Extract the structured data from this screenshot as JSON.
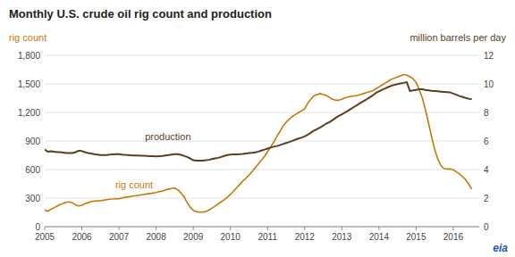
{
  "chart_data": {
    "type": "line",
    "title": "Monthly U.S. crude oil rig count and production",
    "y_label": "rig count",
    "y2_label": "million barrels per day",
    "xlim": [
      2005.0,
      2016.7
    ],
    "xticks": [
      2005,
      2006,
      2007,
      2008,
      2009,
      2010,
      2011,
      2012,
      2013,
      2014,
      2015,
      2016
    ],
    "ylim": [
      0,
      1800
    ],
    "yticks": [
      0,
      300,
      600,
      900,
      {
        "value": 1200,
        "label": "1,200"
      },
      {
        "value": 1500,
        "label": "1,500"
      },
      {
        "value": 1800,
        "label": "1,800"
      }
    ],
    "y2lim": [
      0,
      12
    ],
    "y2ticks": [
      0,
      2,
      4,
      6,
      8,
      10,
      12
    ],
    "grid": true,
    "x": [
      2005.0,
      2005.083,
      2005.167,
      2005.25,
      2005.333,
      2005.417,
      2005.5,
      2005.583,
      2005.667,
      2005.75,
      2005.833,
      2005.917,
      2006.0,
      2006.083,
      2006.167,
      2006.25,
      2006.333,
      2006.417,
      2006.5,
      2006.583,
      2006.667,
      2006.75,
      2006.833,
      2006.917,
      2007.0,
      2007.083,
      2007.167,
      2007.25,
      2007.333,
      2007.417,
      2007.5,
      2007.583,
      2007.667,
      2007.75,
      2007.833,
      2007.917,
      2008.0,
      2008.083,
      2008.167,
      2008.25,
      2008.333,
      2008.417,
      2008.5,
      2008.583,
      2008.667,
      2008.75,
      2008.833,
      2008.917,
      2009.0,
      2009.083,
      2009.167,
      2009.25,
      2009.333,
      2009.417,
      2009.5,
      2009.583,
      2009.667,
      2009.75,
      2009.833,
      2009.917,
      2010.0,
      2010.083,
      2010.167,
      2010.25,
      2010.333,
      2010.417,
      2010.5,
      2010.583,
      2010.667,
      2010.75,
      2010.833,
      2010.917,
      2011.0,
      2011.083,
      2011.167,
      2011.25,
      2011.333,
      2011.417,
      2011.5,
      2011.583,
      2011.667,
      2011.75,
      2011.833,
      2011.917,
      2012.0,
      2012.083,
      2012.167,
      2012.25,
      2012.333,
      2012.417,
      2012.5,
      2012.583,
      2012.667,
      2012.75,
      2012.833,
      2012.917,
      2013.0,
      2013.083,
      2013.167,
      2013.25,
      2013.333,
      2013.417,
      2013.5,
      2013.583,
      2013.667,
      2013.75,
      2013.833,
      2013.917,
      2014.0,
      2014.083,
      2014.167,
      2014.25,
      2014.333,
      2014.417,
      2014.5,
      2014.583,
      2014.667,
      2014.75,
      2014.833,
      2014.917,
      2015.0,
      2015.083,
      2015.167,
      2015.25,
      2015.333,
      2015.417,
      2015.5,
      2015.583,
      2015.667,
      2015.75,
      2015.833,
      2015.917,
      2016.0,
      2016.083,
      2016.167,
      2016.25,
      2016.333,
      2016.417,
      2016.5
    ],
    "series": [
      {
        "color": "#c8780a",
        "values": [
          175,
          162,
          182,
          198,
          215,
          232,
          245,
          255,
          260,
          250,
          228,
          218,
          225,
          242,
          252,
          262,
          268,
          272,
          272,
          278,
          283,
          288,
          290,
          293,
          293,
          302,
          308,
          313,
          318,
          323,
          328,
          333,
          338,
          343,
          348,
          353,
          358,
          368,
          374,
          385,
          395,
          400,
          405,
          388,
          355,
          315,
          255,
          205,
          172,
          158,
          152,
          152,
          158,
          174,
          194,
          215,
          238,
          260,
          283,
          308,
          338,
          372,
          408,
          442,
          478,
          508,
          542,
          578,
          618,
          658,
          698,
          738,
          788,
          838,
          888,
          948,
          998,
          1058,
          1098,
          1128,
          1158,
          1178,
          1198,
          1218,
          1238,
          1298,
          1338,
          1375,
          1388,
          1398,
          1388,
          1378,
          1358,
          1338,
          1328,
          1328,
          1338,
          1352,
          1362,
          1368,
          1374,
          1378,
          1388,
          1398,
          1408,
          1418,
          1428,
          1448,
          1468,
          1488,
          1508,
          1528,
          1548,
          1562,
          1572,
          1585,
          1598,
          1592,
          1575,
          1555,
          1515,
          1442,
          1352,
          1232,
          1092,
          942,
          812,
          712,
          642,
          612,
          605,
          608,
          598,
          575,
          555,
          525,
          495,
          445,
          395
        ]
      },
      {
        "color": "#5c3d1e",
        "axis": "y2",
        "values": [
          5.4,
          5.25,
          5.28,
          5.25,
          5.22,
          5.22,
          5.19,
          5.16,
          5.16,
          5.16,
          5.22,
          5.32,
          5.29,
          5.22,
          5.15,
          5.12,
          5.08,
          5.05,
          5.02,
          5.02,
          5.02,
          5.04,
          5.07,
          5.08,
          5.08,
          5.05,
          5.03,
          5.02,
          5.0,
          4.99,
          4.98,
          4.97,
          4.97,
          4.96,
          4.94,
          4.93,
          4.92,
          4.94,
          4.96,
          4.99,
          5.01,
          5.05,
          5.08,
          5.08,
          5.03,
          4.96,
          4.88,
          4.78,
          4.65,
          4.62,
          4.62,
          4.63,
          4.65,
          4.68,
          4.73,
          4.78,
          4.82,
          4.88,
          4.95,
          5.02,
          5.04,
          5.06,
          5.06,
          5.08,
          5.1,
          5.13,
          5.15,
          5.17,
          5.2,
          5.26,
          5.33,
          5.4,
          5.47,
          5.54,
          5.6,
          5.65,
          5.71,
          5.79,
          5.86,
          5.93,
          6.01,
          6.09,
          6.17,
          6.24,
          6.32,
          6.44,
          6.59,
          6.73,
          6.83,
          6.95,
          7.08,
          7.22,
          7.32,
          7.46,
          7.62,
          7.76,
          7.86,
          7.99,
          8.12,
          8.26,
          8.39,
          8.52,
          8.66,
          8.79,
          8.92,
          9.06,
          9.2,
          9.36,
          9.48,
          9.59,
          9.68,
          9.78,
          9.87,
          9.93,
          9.98,
          10.03,
          10.07,
          10.12,
          9.5,
          9.55,
          9.58,
          9.62,
          9.62,
          9.58,
          9.55,
          9.52,
          9.5,
          9.48,
          9.46,
          9.44,
          9.42,
          9.4,
          9.32,
          9.24,
          9.15,
          9.09,
          9.02,
          8.96,
          8.93
        ]
      }
    ],
    "annotations": [
      {
        "text": "production",
        "x": 2007.7,
        "y": 5.85,
        "axis": "y2"
      },
      {
        "text": "rig count",
        "x": 2006.9,
        "y": 375
      },
      {
        "text": "eia"
      }
    ]
  }
}
